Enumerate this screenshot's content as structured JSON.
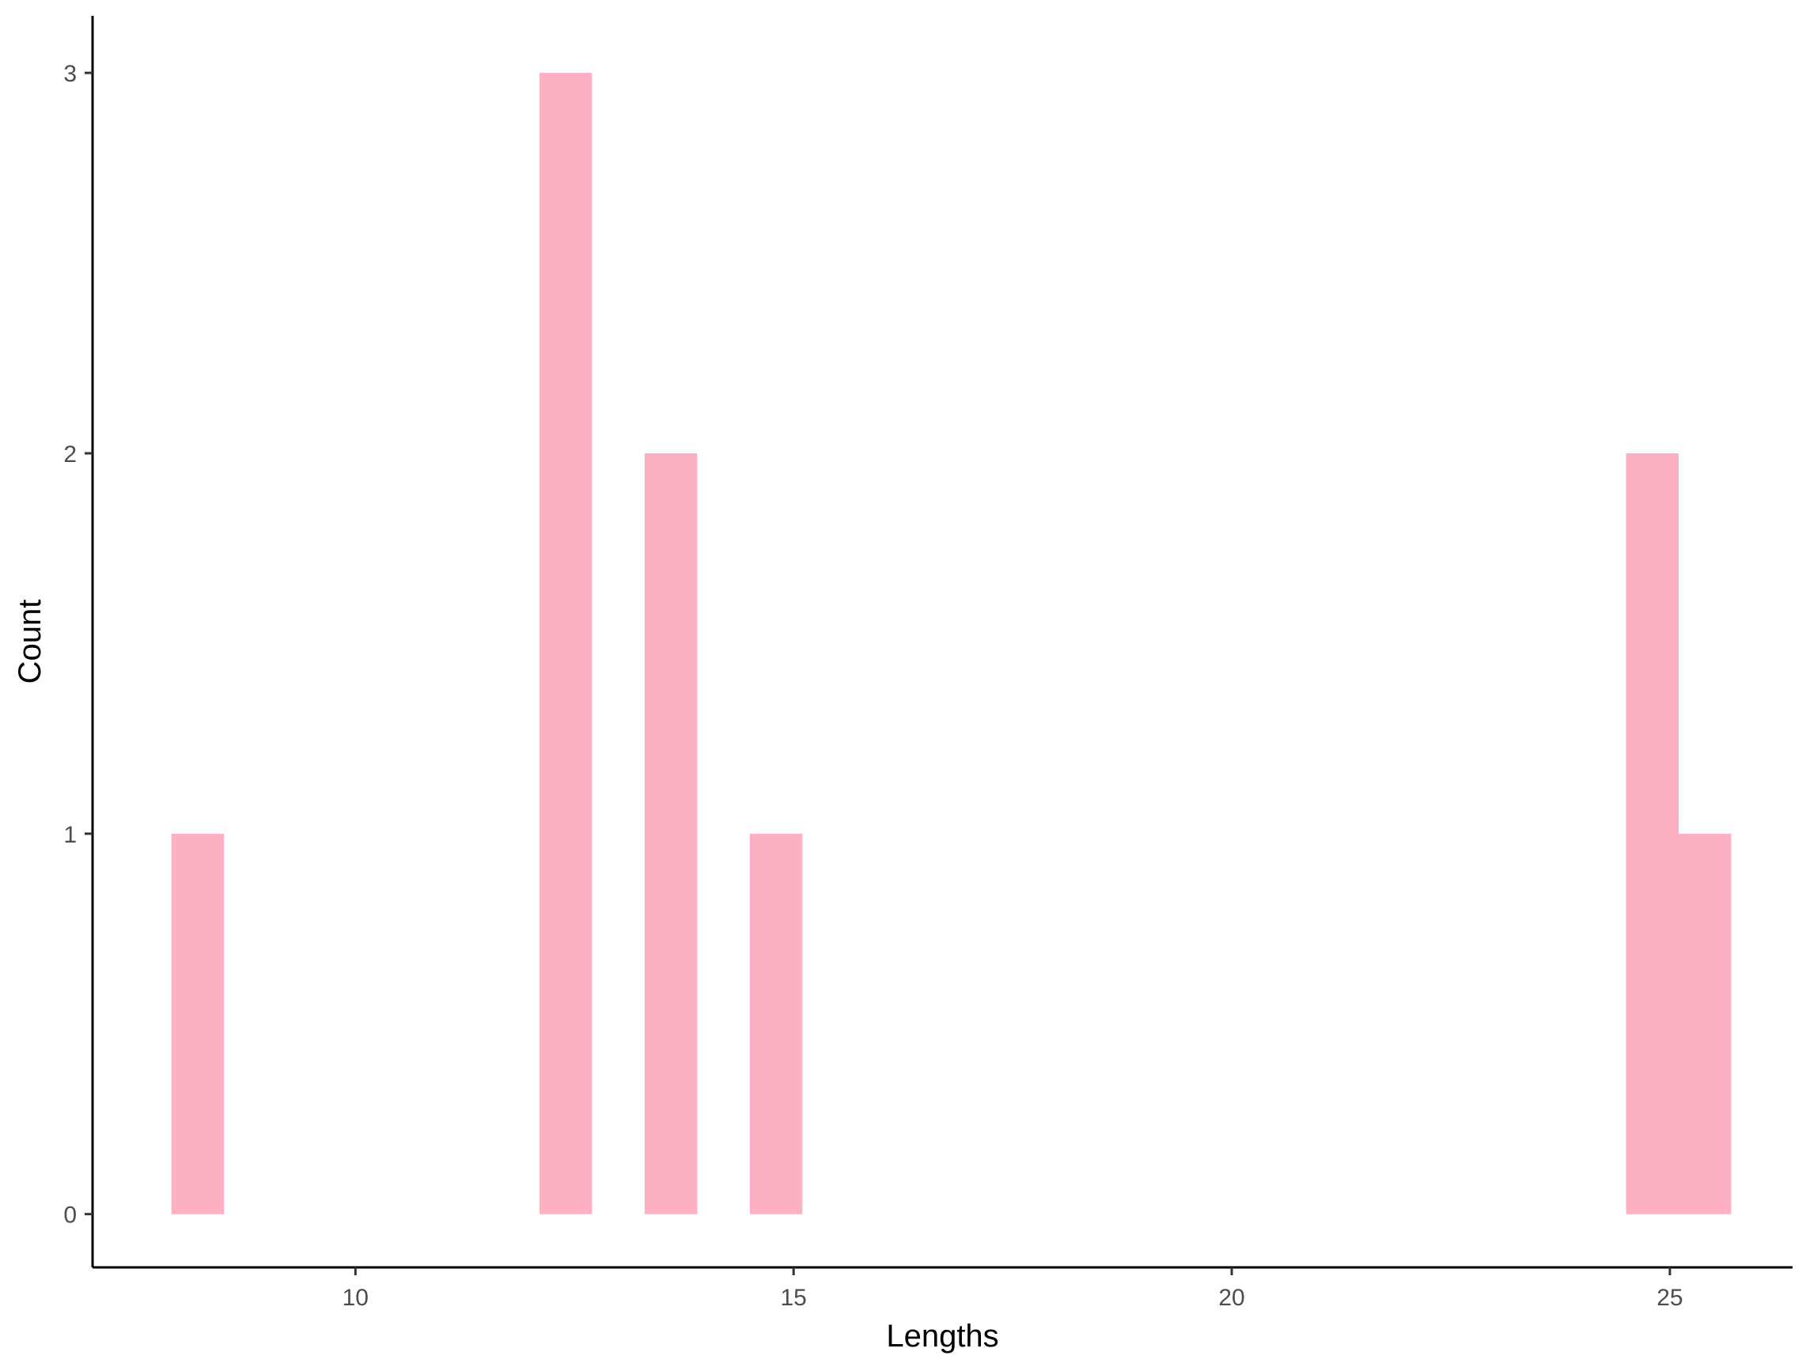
{
  "chart_data": {
    "type": "bar",
    "subtype": "histogram",
    "title": "",
    "xlabel": "Lengths",
    "ylabel": "Count",
    "bin_width": 0.6,
    "bins": [
      {
        "x_start": 7.9,
        "x_end": 8.5,
        "count": 1
      },
      {
        "x_start": 12.1,
        "x_end": 12.7,
        "count": 3
      },
      {
        "x_start": 13.3,
        "x_end": 13.9,
        "count": 2
      },
      {
        "x_start": 14.5,
        "x_end": 15.1,
        "count": 1
      },
      {
        "x_start": 24.5,
        "x_end": 25.1,
        "count": 2
      },
      {
        "x_start": 25.1,
        "x_end": 25.7,
        "count": 1
      }
    ],
    "xlim": [
      7.0,
      26.4
    ],
    "ylim": [
      -0.14,
      3.15
    ],
    "x_ticks": [
      10,
      15,
      20,
      25
    ],
    "x_tick_labels": [
      "10",
      "15",
      "20",
      "25"
    ],
    "y_ticks": [
      0,
      1,
      2,
      3
    ],
    "y_tick_labels": [
      "0",
      "1",
      "2",
      "3"
    ],
    "grid": false,
    "legend": "none",
    "colors": {
      "bar_fill": "#FDB0C2",
      "axis": "#000000",
      "tick_text": "#4d4d4d"
    }
  }
}
